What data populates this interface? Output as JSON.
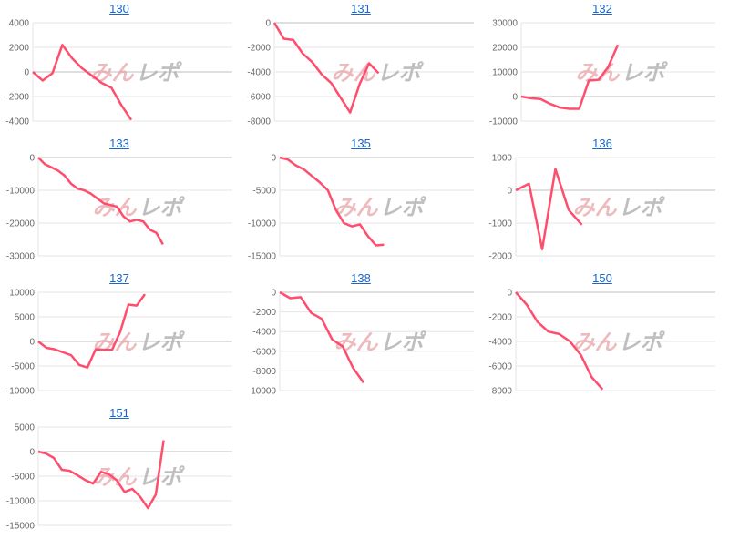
{
  "watermark": {
    "text_pink": "みん",
    "text_grey": "レポ"
  },
  "colors": {
    "line": "#ff4d6d",
    "link": "#1a66cc",
    "grid": "#e6e6e6",
    "zero": "#cccccc"
  },
  "chart_data": [
    {
      "type": "line",
      "title": "130",
      "yticks": [
        4000,
        2000,
        0,
        -2000,
        -4000
      ],
      "ylim": [
        -4000,
        4000
      ],
      "values": [
        0,
        -700,
        -100,
        2200,
        1100,
        300,
        -300,
        -900,
        -1300,
        -2700,
        -3900
      ]
    },
    {
      "type": "line",
      "title": "131",
      "yticks": [
        0,
        -2000,
        -4000,
        -6000,
        -8000
      ],
      "ylim": [
        -8000,
        0
      ],
      "values": [
        0,
        -1300,
        -1400,
        -2500,
        -3200,
        -4200,
        -4900,
        -6100,
        -7300,
        -5000,
        -3300,
        -4100
      ]
    },
    {
      "type": "line",
      "title": "132",
      "yticks": [
        30000,
        20000,
        10000,
        0,
        -10000
      ],
      "ylim": [
        -10000,
        30000
      ],
      "values": [
        0,
        -700,
        -1000,
        -3000,
        -4500,
        -5000,
        -5000,
        6500,
        6800,
        12000,
        21000
      ]
    },
    {
      "type": "line",
      "title": "133",
      "yticks": [
        0,
        -10000,
        -20000,
        -30000
      ],
      "ylim": [
        -30000,
        0
      ],
      "values": [
        0,
        -2000,
        -3000,
        -4000,
        -5500,
        -8000,
        -9500,
        -10000,
        -11000,
        -12500,
        -14000,
        -14500,
        -15000,
        -18000,
        -19500,
        -19000,
        -19500,
        -22000,
        -23000,
        -26500
      ]
    },
    {
      "type": "line",
      "title": "135",
      "yticks": [
        0,
        -5000,
        -10000,
        -15000
      ],
      "ylim": [
        -15000,
        0
      ],
      "values": [
        0,
        -300,
        -1200,
        -1800,
        -2800,
        -3800,
        -5000,
        -8000,
        -10000,
        -10500,
        -10200,
        -12000,
        -13400,
        -13300
      ]
    },
    {
      "type": "line",
      "title": "136",
      "yticks": [
        1000,
        0,
        -1000,
        -2000
      ],
      "ylim": [
        -2000,
        1000
      ],
      "values": [
        0,
        200,
        -1800,
        650,
        -600,
        -1050
      ]
    },
    {
      "type": "line",
      "title": "137",
      "yticks": [
        10000,
        5000,
        0,
        -5000,
        -10000
      ],
      "ylim": [
        -10000,
        10000
      ],
      "values": [
        0,
        -1300,
        -1600,
        -2200,
        -2800,
        -4800,
        -5300,
        -1600,
        -1700,
        -1700,
        2000,
        7500,
        7300,
        9600
      ]
    },
    {
      "type": "line",
      "title": "138",
      "yticks": [
        0,
        -2000,
        -4000,
        -6000,
        -8000,
        -10000
      ],
      "ylim": [
        -10000,
        0
      ],
      "values": [
        0,
        -600,
        -500,
        -2100,
        -2700,
        -4800,
        -5500,
        -7700,
        -9200
      ]
    },
    {
      "type": "line",
      "title": "150",
      "yticks": [
        0,
        -2000,
        -4000,
        -6000,
        -8000
      ],
      "ylim": [
        -8000,
        0
      ],
      "values": [
        0,
        -1000,
        -2400,
        -3200,
        -3400,
        -4000,
        -5100,
        -6900,
        -7900
      ]
    },
    {
      "type": "line",
      "title": "151",
      "yticks": [
        5000,
        0,
        -5000,
        -10000,
        -15000
      ],
      "ylim": [
        -15000,
        5000
      ],
      "values": [
        0,
        -400,
        -1300,
        -3700,
        -3900,
        -4800,
        -5800,
        -6500,
        -4100,
        -4600,
        -5800,
        -8200,
        -7600,
        -9200,
        -11500,
        -8700,
        2300
      ]
    }
  ]
}
